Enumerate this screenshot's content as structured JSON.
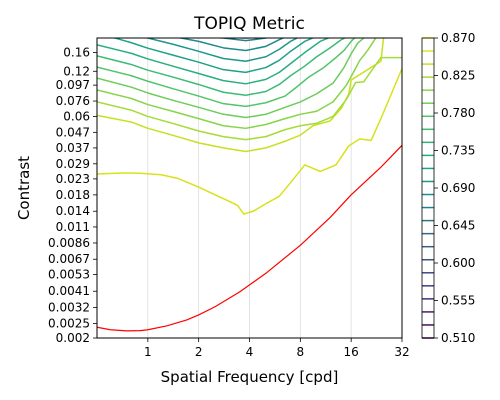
{
  "chart_data": {
    "type": "contour",
    "title": "TOPIQ Metric",
    "xlabel": "Spatial Frequency [cpd]",
    "ylabel": "Contrast",
    "x_scale": "log2",
    "y_scale": "log",
    "xlim": [
      0.5,
      32
    ],
    "ylim": [
      0.002,
      0.2
    ],
    "x_ticks": [
      "1",
      "2",
      "4",
      "8",
      "16",
      "32"
    ],
    "y_ticks": [
      "0.002",
      "0.0025",
      "0.0032",
      "0.0041",
      "0.0053",
      "0.0067",
      "0.0086",
      "0.011",
      "0.014",
      "0.018",
      "0.023",
      "0.029",
      "0.037",
      "0.047",
      "0.06",
      "0.076",
      "0.097",
      "0.12",
      "0.16"
    ],
    "grid": "vertical",
    "colormap": "viridis",
    "colorbar": {
      "min": 0.51,
      "max": 0.87,
      "ticks": [
        "0.510",
        "0.555",
        "0.600",
        "0.645",
        "0.690",
        "0.735",
        "0.780",
        "0.825",
        "0.870"
      ],
      "levels": 24
    },
    "reference_curve": {
      "color": "#ff0000",
      "x": [
        0.5,
        0.6,
        0.75,
        0.9,
        1.0,
        1.3,
        1.7,
        2.0,
        2.5,
        3.5,
        5.0,
        8.0,
        12.0,
        16.0,
        24.0,
        32.0
      ],
      "y": [
        0.00236,
        0.00227,
        0.00223,
        0.00224,
        0.00227,
        0.00241,
        0.00264,
        0.00285,
        0.00323,
        0.00406,
        0.0054,
        0.0083,
        0.0127,
        0.018,
        0.0275,
        0.0385
      ]
    },
    "contours": [
      {
        "level": 0.84,
        "color": "#d8e219",
        "x": [
          0.5,
          0.7,
          0.9,
          1.2,
          1.5,
          2.0,
          2.5,
          3.0,
          3.4,
          3.7,
          4.2,
          5.0,
          6.0,
          7.0,
          8.5,
          10.5,
          13.0,
          15.5,
          18.0,
          21.0,
          24.0,
          32.0
        ],
        "y": [
          0.0248,
          0.0252,
          0.0251,
          0.0245,
          0.0232,
          0.0203,
          0.018,
          0.0164,
          0.0153,
          0.0134,
          0.014,
          0.0157,
          0.0176,
          0.0217,
          0.0285,
          0.0258,
          0.0285,
          0.0382,
          0.0425,
          0.0415,
          0.058,
          0.125
        ]
      },
      {
        "level": 0.825,
        "color": "#c8e020",
        "x": [
          0.5,
          0.8,
          1.0,
          1.4,
          2.0,
          2.8,
          3.8,
          5.0,
          6.5,
          8.0,
          9.5,
          12.0,
          14.0,
          15.5,
          16.0,
          24.0,
          25.0,
          26.0,
          28.0,
          32.0
        ],
        "y": [
          0.061,
          0.055,
          0.05,
          0.045,
          0.04,
          0.037,
          0.035,
          0.037,
          0.041,
          0.045,
          0.052,
          0.056,
          0.068,
          0.085,
          0.105,
          0.14,
          0.21,
          0.21,
          0.21,
          0.21
        ]
      },
      {
        "level": 0.81,
        "color": "#a5db36",
        "x": [
          0.5,
          0.8,
          1.0,
          1.4,
          2.0,
          2.8,
          3.8,
          5.0,
          6.5,
          8.0,
          10.0,
          12.5,
          15.0,
          17.0,
          19.0,
          21.0,
          24.0,
          32.0
        ],
        "y": [
          0.075,
          0.066,
          0.06,
          0.054,
          0.048,
          0.044,
          0.042,
          0.044,
          0.049,
          0.052,
          0.054,
          0.06,
          0.078,
          0.101,
          0.102,
          0.12,
          0.148,
          0.148
        ]
      },
      {
        "level": 0.795,
        "color": "#86d549",
        "x": [
          0.5,
          0.8,
          1.0,
          1.4,
          2.0,
          2.8,
          3.8,
          5.0,
          6.5,
          8.0,
          10.0,
          12.5,
          15.0,
          16.5,
          18.0,
          20.0,
          23.0,
          26.0
        ],
        "y": [
          0.09,
          0.079,
          0.072,
          0.065,
          0.058,
          0.052,
          0.05,
          0.053,
          0.058,
          0.062,
          0.065,
          0.075,
          0.097,
          0.118,
          0.142,
          0.165,
          0.21,
          0.21
        ]
      },
      {
        "level": 0.78,
        "color": "#6ccd5a",
        "x": [
          0.5,
          0.8,
          1.0,
          1.4,
          2.0,
          2.8,
          3.8,
          5.0,
          6.5,
          8.0,
          10.0,
          12.5,
          14.5,
          16.0,
          17.5,
          20.0
        ],
        "y": [
          0.108,
          0.094,
          0.086,
          0.077,
          0.069,
          0.062,
          0.059,
          0.062,
          0.069,
          0.075,
          0.085,
          0.1,
          0.127,
          0.157,
          0.185,
          0.21
        ]
      },
      {
        "level": 0.765,
        "color": "#52c569",
        "x": [
          0.5,
          0.8,
          1.0,
          1.4,
          2.0,
          2.8,
          3.8,
          5.0,
          6.5,
          7.5,
          9.0,
          11.0,
          13.0,
          14.5,
          16.0,
          17.5
        ],
        "y": [
          0.128,
          0.112,
          0.103,
          0.092,
          0.082,
          0.073,
          0.07,
          0.074,
          0.082,
          0.093,
          0.11,
          0.127,
          0.148,
          0.165,
          0.19,
          0.21
        ]
      },
      {
        "level": 0.75,
        "color": "#3bbb75",
        "x": [
          0.5,
          0.8,
          1.0,
          1.4,
          2.0,
          2.8,
          3.8,
          5.0,
          6.0,
          7.0,
          8.5,
          10.0,
          12.0,
          14.0,
          16.0
        ],
        "y": [
          0.152,
          0.133,
          0.122,
          0.11,
          0.098,
          0.087,
          0.083,
          0.088,
          0.098,
          0.112,
          0.13,
          0.15,
          0.172,
          0.195,
          0.21
        ]
      },
      {
        "level": 0.735,
        "color": "#28ae80",
        "x": [
          0.5,
          0.8,
          1.0,
          1.4,
          2.0,
          2.8,
          3.8,
          5.0,
          6.0,
          7.0,
          8.5,
          10.5,
          13.0
        ],
        "y": [
          0.18,
          0.158,
          0.145,
          0.13,
          0.116,
          0.104,
          0.099,
          0.106,
          0.118,
          0.135,
          0.16,
          0.19,
          0.21
        ]
      },
      {
        "level": 0.72,
        "color": "#1fa188",
        "x": [
          0.55,
          0.8,
          1.0,
          1.4,
          2.0,
          2.8,
          3.8,
          5.0,
          6.0,
          7.0,
          8.5,
          10.5
        ],
        "y": [
          0.21,
          0.186,
          0.171,
          0.154,
          0.138,
          0.123,
          0.118,
          0.127,
          0.142,
          0.163,
          0.19,
          0.21
        ]
      },
      {
        "level": 0.705,
        "color": "#1f958b",
        "x": [
          0.75,
          1.0,
          1.4,
          2.0,
          2.8,
          3.8,
          5.0,
          6.0,
          7.0,
          8.0,
          9.5
        ],
        "y": [
          0.21,
          0.2,
          0.182,
          0.163,
          0.146,
          0.14,
          0.15,
          0.168,
          0.19,
          0.205,
          0.21
        ]
      },
      {
        "level": 0.69,
        "color": "#21898d",
        "x": [
          1.15,
          1.4,
          2.0,
          2.8,
          3.8,
          5.0,
          6.0,
          7.0,
          8.0
        ],
        "y": [
          0.21,
          0.205,
          0.19,
          0.172,
          0.165,
          0.176,
          0.195,
          0.21,
          0.21
        ]
      },
      {
        "level": 0.675,
        "color": "#25818e",
        "x": [
          1.6,
          2.0,
          2.8,
          3.8,
          5.0,
          6.0,
          7.0
        ],
        "y": [
          0.21,
          0.205,
          0.2,
          0.192,
          0.2,
          0.21,
          0.21
        ]
      },
      {
        "level": 0.645,
        "color": "#2d708e",
        "x": [
          2.4,
          2.8,
          3.3,
          3.8,
          4.5,
          5.0,
          5.8
        ],
        "y": [
          0.21,
          0.205,
          0.201,
          0.2,
          0.202,
          0.206,
          0.21
        ]
      }
    ]
  }
}
